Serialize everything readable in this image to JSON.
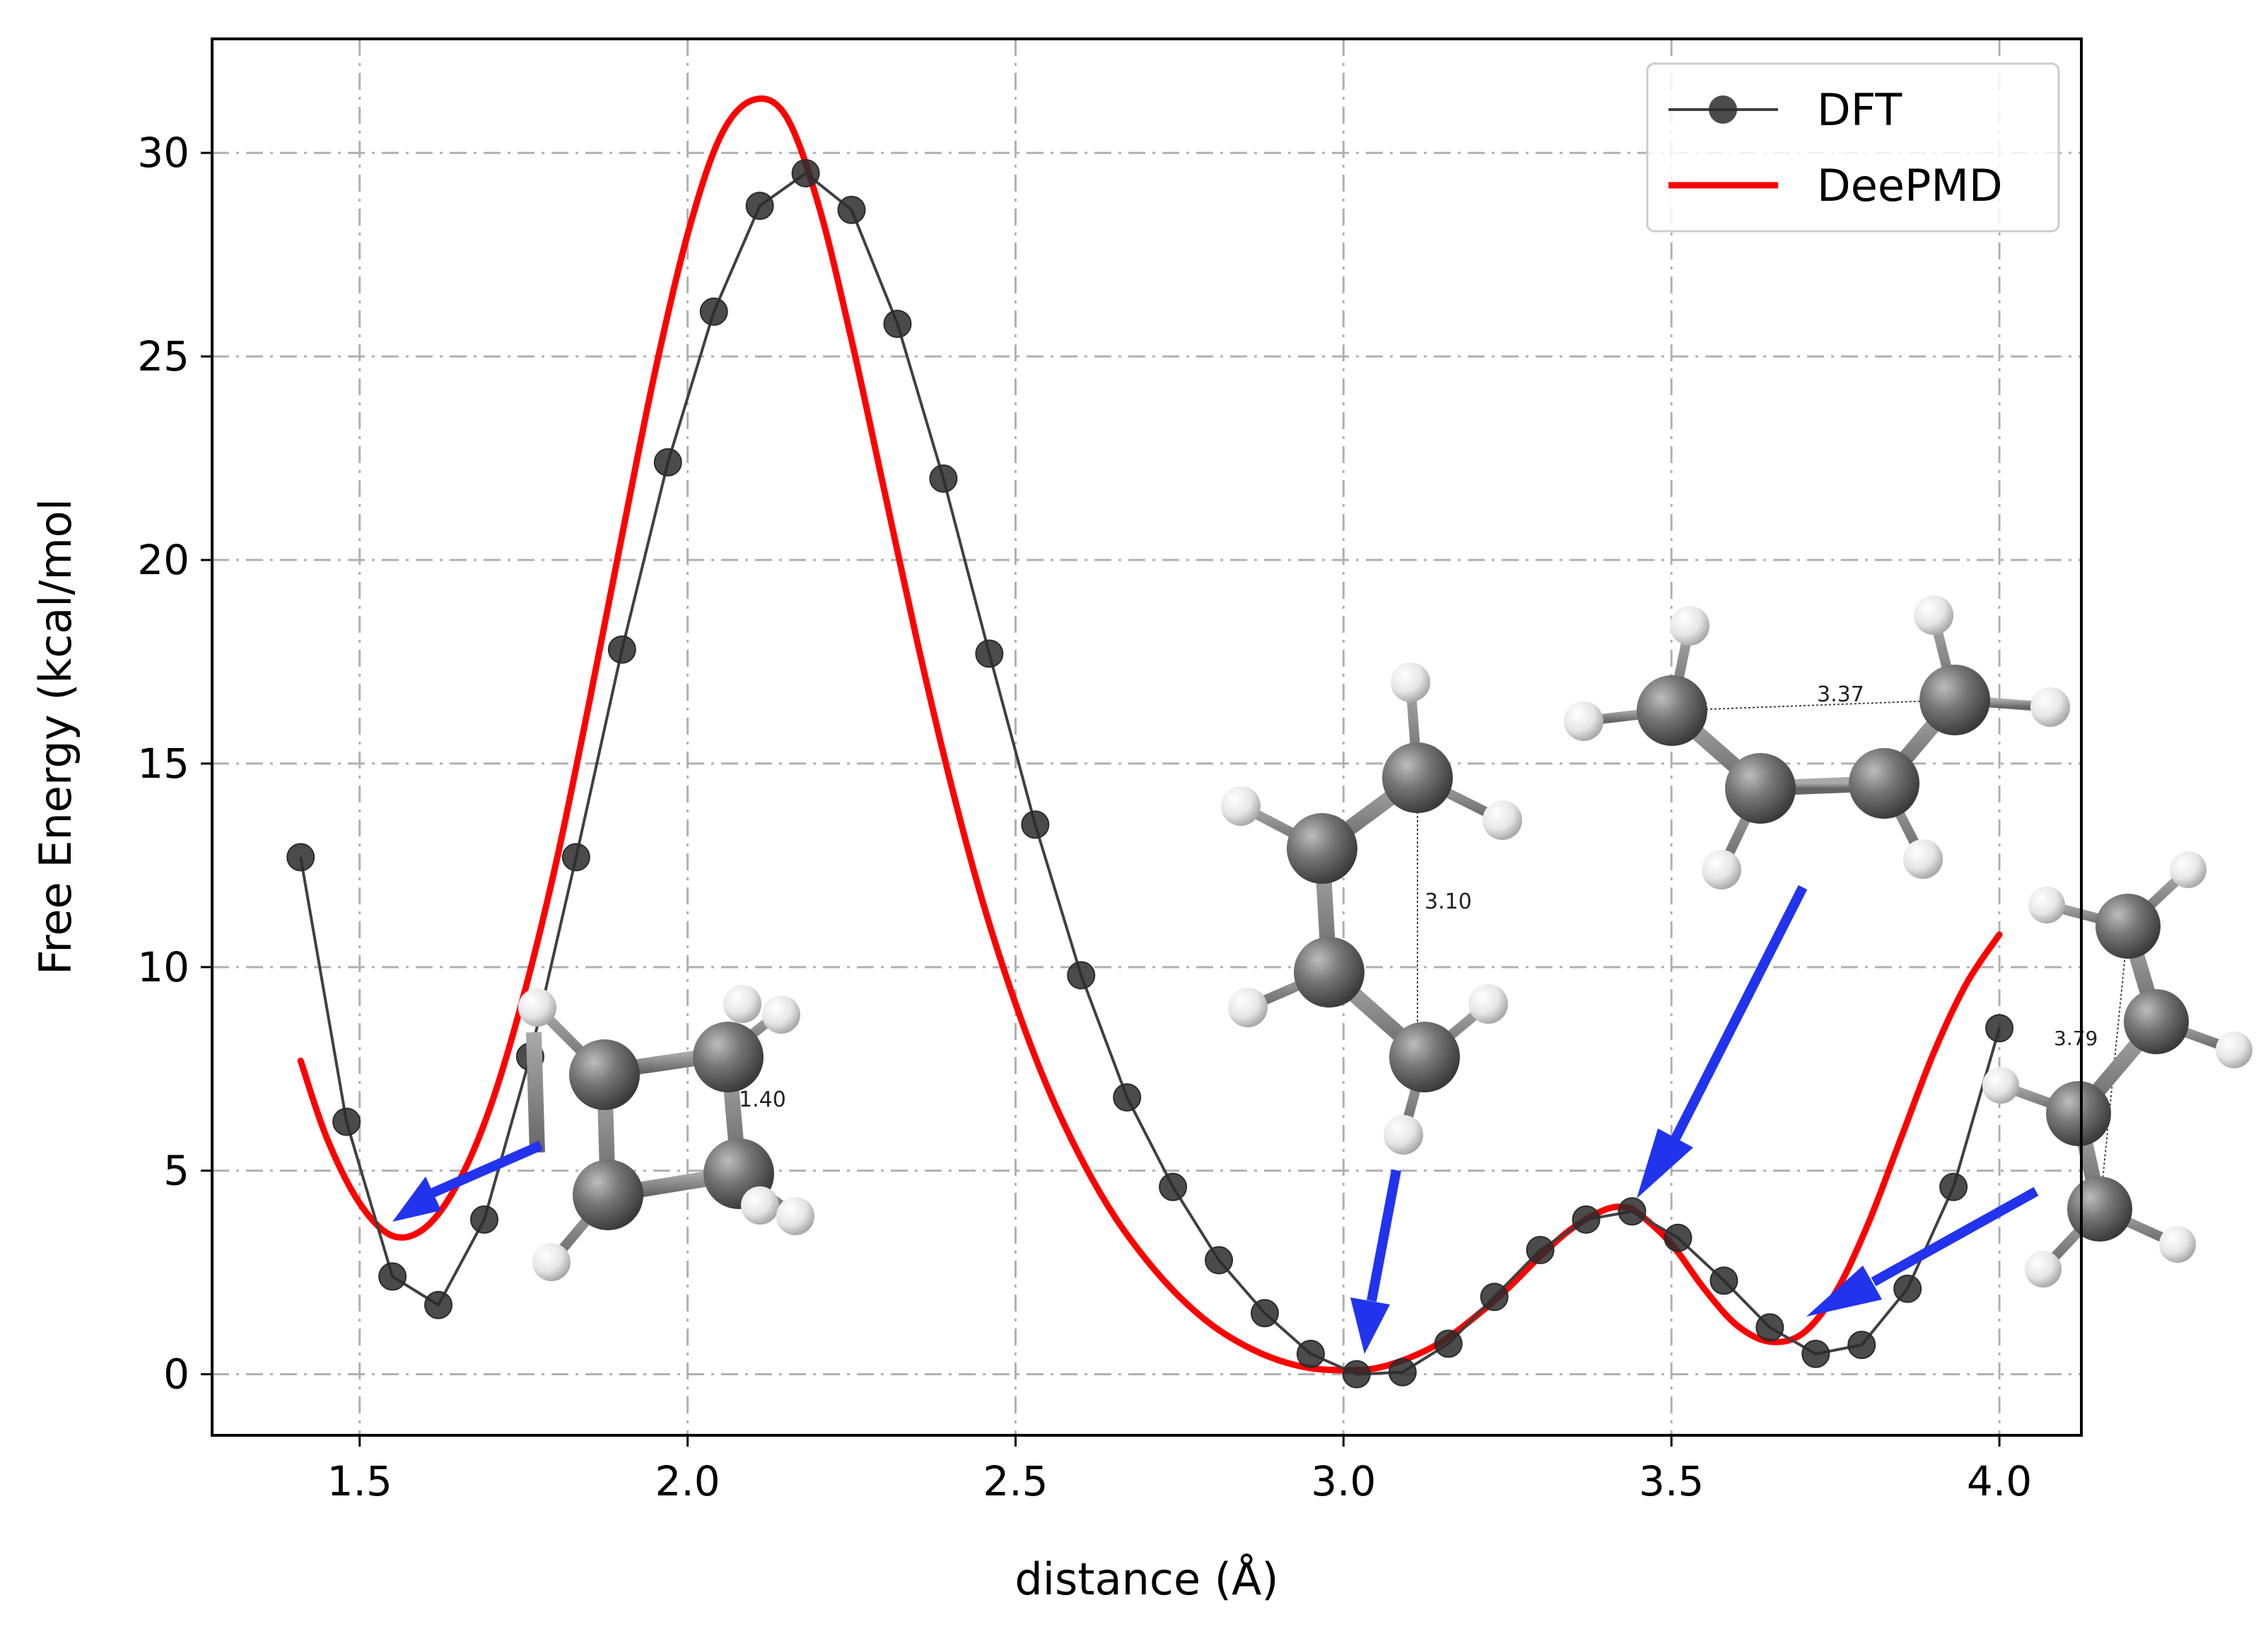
{
  "chart_data": {
    "type": "line",
    "xlabel": "distance (Å)",
    "ylabel": "Free Energy (kcal/mol",
    "xlim": [
      1.275,
      4.125
    ],
    "ylim": [
      -1.5,
      32.8
    ],
    "xticks": [
      1.5,
      2.0,
      2.5,
      3.0,
      3.5,
      4.0
    ],
    "xtick_labels": [
      "1.5",
      "2.0",
      "2.5",
      "3.0",
      "3.5",
      "4.0"
    ],
    "yticks": [
      0,
      5,
      10,
      15,
      20,
      25,
      30
    ],
    "ytick_labels": [
      "0",
      "5",
      "10",
      "15",
      "20",
      "25",
      "30"
    ],
    "grid": true,
    "grid_style": "dash-dot",
    "legend_position": "top-right",
    "series": [
      {
        "name": "DFT",
        "style": "line-with-markers",
        "color": "#404040",
        "marker_color": "#2b2b2b",
        "x": [
          1.41,
          1.48,
          1.55,
          1.62,
          1.69,
          1.76,
          1.83,
          1.9,
          1.97,
          2.04,
          2.11,
          2.18,
          2.25,
          2.32,
          2.39,
          2.46,
          2.53,
          2.6,
          2.67,
          2.74,
          2.81,
          2.88,
          2.95,
          3.02,
          3.09,
          3.16,
          3.23,
          3.3,
          3.37,
          3.44,
          3.51,
          3.58,
          3.65,
          3.72,
          3.79,
          3.86,
          3.93,
          4.0
        ],
        "y": [
          12.7,
          6.2,
          2.4,
          1.7,
          3.8,
          7.8,
          12.7,
          17.8,
          22.4,
          26.1,
          28.7,
          29.5,
          28.6,
          25.8,
          22.0,
          17.7,
          13.5,
          9.8,
          6.8,
          4.6,
          2.8,
          1.5,
          0.5,
          0.0,
          0.05,
          0.75,
          1.9,
          3.05,
          3.8,
          4.0,
          3.35,
          2.3,
          1.15,
          0.5,
          0.72,
          2.1,
          4.6,
          8.5
        ]
      },
      {
        "name": "DeePMD",
        "style": "line",
        "color": "#ff0000",
        "x": [
          1.41,
          1.45,
          1.5,
          1.55,
          1.6,
          1.65,
          1.7,
          1.75,
          1.8,
          1.85,
          1.9,
          1.95,
          2.0,
          2.05,
          2.1,
          2.15,
          2.2,
          2.25,
          2.3,
          2.35,
          2.4,
          2.45,
          2.5,
          2.55,
          2.6,
          2.65,
          2.7,
          2.75,
          2.8,
          2.85,
          2.9,
          2.95,
          3.0,
          3.05,
          3.1,
          3.15,
          3.2,
          3.25,
          3.3,
          3.35,
          3.4,
          3.43,
          3.45,
          3.5,
          3.55,
          3.6,
          3.65,
          3.7,
          3.75,
          3.8,
          3.85,
          3.9,
          3.95,
          4.0
        ],
        "y": [
          7.7,
          5.8,
          4.2,
          3.4,
          3.6,
          4.7,
          6.6,
          9.3,
          12.6,
          16.5,
          20.6,
          24.6,
          28.0,
          30.4,
          31.3,
          30.9,
          28.7,
          25.4,
          21.7,
          18.0,
          14.6,
          11.6,
          9.1,
          7.0,
          5.3,
          3.9,
          2.8,
          1.9,
          1.2,
          0.7,
          0.35,
          0.15,
          0.1,
          0.15,
          0.4,
          0.8,
          1.4,
          2.1,
          2.9,
          3.6,
          4.05,
          4.1,
          3.95,
          3.2,
          2.1,
          1.2,
          0.8,
          1.0,
          2.0,
          3.7,
          5.8,
          7.9,
          9.6,
          10.8
        ]
      }
    ],
    "annotations": [
      {
        "label": "1.40",
        "kind": "molecule-inset",
        "depicts": "cyclobutene-like ring"
      },
      {
        "label": "3.10",
        "kind": "molecule-inset",
        "depicts": "chain conformer"
      },
      {
        "label": "3.37",
        "kind": "molecule-inset",
        "depicts": "chain conformer"
      },
      {
        "label": "3.79",
        "kind": "molecule-inset",
        "depicts": "chain conformer"
      }
    ],
    "arrow_color": "#2233ee"
  }
}
